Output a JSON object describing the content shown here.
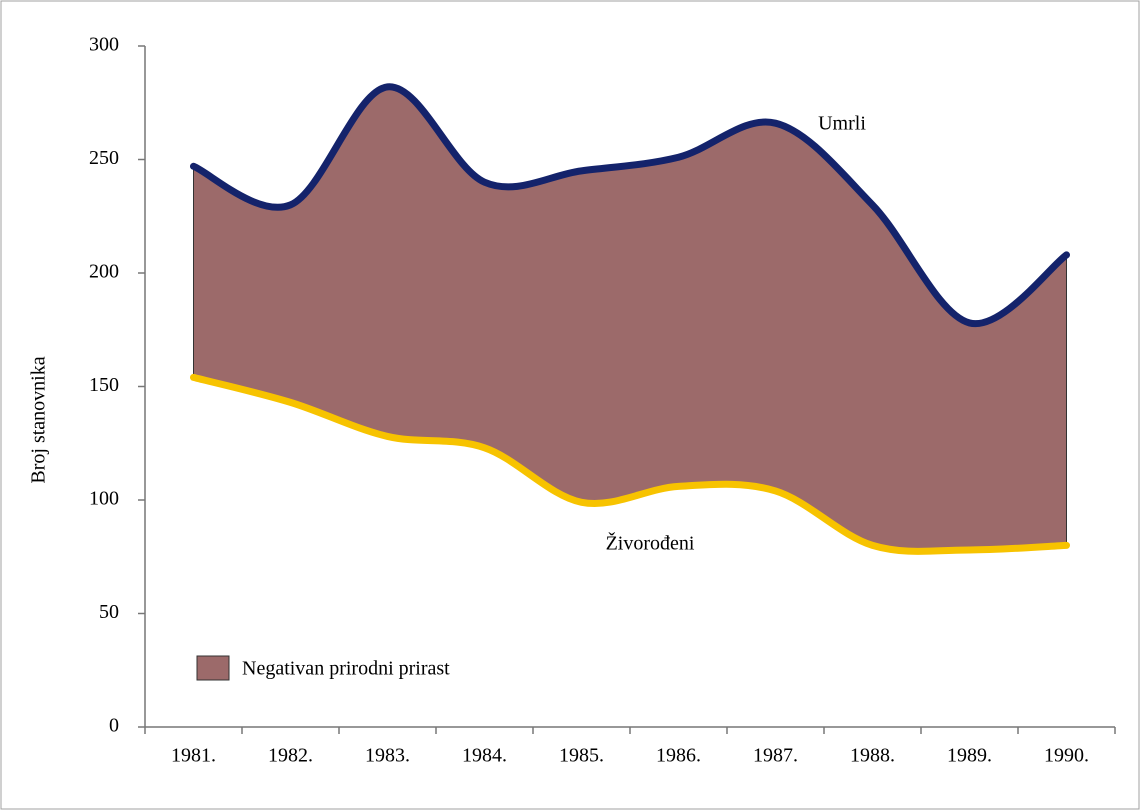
{
  "chart_data": {
    "type": "area_between",
    "ylabel": "Broj stanovnika",
    "categories": [
      "1981.",
      "1982.",
      "1983.",
      "1984.",
      "1985.",
      "1986.",
      "1987.",
      "1988.",
      "1989.",
      "1990."
    ],
    "series": [
      {
        "name": "Umrli",
        "color": "#14236b",
        "values": [
          247,
          230,
          282,
          240,
          245,
          251,
          266,
          230,
          178,
          208
        ]
      },
      {
        "name": "Živorođeni",
        "color": "#f7c300",
        "values": [
          154,
          143,
          128,
          123,
          99,
          106,
          104,
          80,
          78,
          80
        ]
      }
    ],
    "area_label": "Negativan prirodni prirast",
    "area_color": "#9c6a6a",
    "ylim": [
      0,
      300
    ],
    "yticks": [
      0,
      50,
      100,
      150,
      200,
      250,
      300
    ],
    "grid": false
  }
}
